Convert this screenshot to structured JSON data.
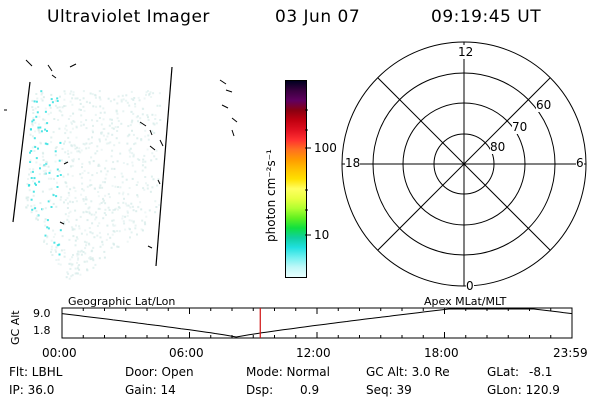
{
  "header": {
    "instrument": "Ultraviolet Imager",
    "date": "03 Jun 07",
    "time": "09:19:45 UT"
  },
  "colorbar": {
    "unit_label": "photon cm⁻²s⁻¹",
    "ticks": [
      {
        "label": "100",
        "value": 100
      },
      {
        "label": "10",
        "value": 10
      }
    ],
    "colors": [
      "#000020",
      "#3a0040",
      "#600060",
      "#8a0010",
      "#c00010",
      "#e01020",
      "#ff3030",
      "#ff7020",
      "#ff9a00",
      "#ffc000",
      "#ffe000",
      "#ffff60",
      "#e8ff40",
      "#b0ff30",
      "#60f020",
      "#10e040",
      "#10d0a0",
      "#20e0e0",
      "#70f0f0",
      "#c0f8f8",
      "#e8ffff"
    ]
  },
  "polar_grid": {
    "mlt_labels": {
      "top": "12",
      "bottom": "0",
      "left": "18",
      "right": "6"
    },
    "lat_labels": [
      "60",
      "70",
      "80"
    ]
  },
  "timeline": {
    "left_label": "Geographic Lat/Lon",
    "right_label": "Apex MLat/MLT",
    "ylabel": "GC Alt",
    "ymax_label": "9.0",
    "ymin_label": "1.8",
    "ylim": [
      1.8,
      9.0
    ],
    "xticks": [
      "00:00",
      "06:00",
      "12:00",
      "18:00",
      "23:59"
    ],
    "marker_hour": 9.33,
    "trough_hour": 8.2
  },
  "info": {
    "filter": "Flt: LBHL",
    "ip": "IP: 36.0",
    "door": "Door: Open",
    "gain": "Gain: 14",
    "mode": "Mode: Normal",
    "dsp_label": "Dsp:",
    "dsp_value": "0.9",
    "gc_alt": "GC Alt: 3.0 Re",
    "seq": "Seq: 39",
    "glat_label": "GLat:",
    "glat_value": "-8.1",
    "glon": "GLon: 120.9"
  },
  "colors": {
    "marker": "#d01010",
    "auroral_faint": "#d8ecea",
    "auroral_bright": "#30e0e0"
  }
}
